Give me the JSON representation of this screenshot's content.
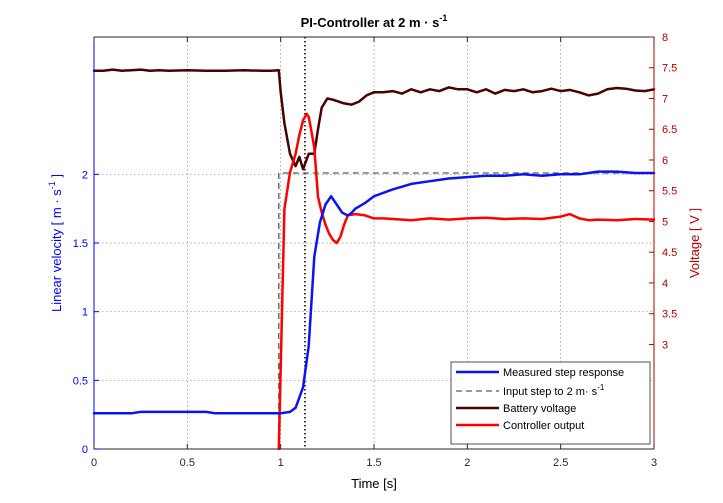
{
  "chart_data": {
    "type": "line",
    "title": "PI-Controller at 2 m · s",
    "title_sup": "-1",
    "xlabel": "Time [s]",
    "ylabel_left": "Linear velocity [ m · s",
    "ylabel_left_sup": "-1",
    "ylabel_left_end": " ]",
    "ylabel_right": "Voltage [ V ]",
    "xlim": [
      0,
      3
    ],
    "ylim_left": [
      0,
      3
    ],
    "ylim_right": [
      1.3,
      8
    ],
    "x_ticks": [
      "0",
      "0.5",
      "1",
      "1.5",
      "2",
      "2.5",
      "3"
    ],
    "y_left_ticks": [
      "0",
      "0.5",
      "1",
      "1.5",
      "2"
    ],
    "y_right_ticks": [
      "3",
      "3.5",
      "4",
      "4.5",
      "5",
      "5.5",
      "6",
      "6.5",
      "7",
      "7.5",
      "8"
    ],
    "grid": true,
    "legend_position": "bottom-right",
    "marker_line_x": 1.13,
    "colors": {
      "left_axis": "#0000ff",
      "right_axis": "#b00000",
      "grid": "#000000"
    },
    "series": [
      {
        "name": "Measured step response",
        "axis": "left",
        "color": "#0a14ee",
        "x": [
          0,
          0.1,
          0.2,
          0.25,
          0.3,
          0.4,
          0.5,
          0.6,
          0.65,
          0.7,
          0.8,
          0.9,
          1.0,
          1.05,
          1.08,
          1.12,
          1.15,
          1.18,
          1.21,
          1.24,
          1.27,
          1.3,
          1.33,
          1.36,
          1.38,
          1.4,
          1.45,
          1.5,
          1.6,
          1.7,
          1.8,
          1.9,
          2.0,
          2.1,
          2.2,
          2.3,
          2.4,
          2.5,
          2.6,
          2.7,
          2.8,
          2.9,
          3.0
        ],
        "y": [
          0.26,
          0.26,
          0.26,
          0.27,
          0.27,
          0.27,
          0.27,
          0.27,
          0.26,
          0.26,
          0.26,
          0.26,
          0.26,
          0.27,
          0.3,
          0.45,
          0.75,
          1.4,
          1.65,
          1.78,
          1.84,
          1.78,
          1.72,
          1.7,
          1.72,
          1.75,
          1.79,
          1.84,
          1.89,
          1.93,
          1.95,
          1.97,
          1.98,
          1.99,
          1.99,
          2.0,
          1.99,
          2.0,
          2.0,
          2.02,
          2.02,
          2.01,
          2.01
        ]
      },
      {
        "name": "Input step to 2 m· s",
        "name_sup": "-1",
        "axis": "left",
        "color": "#5a5a5a",
        "dashed": true,
        "x": [
          0.99,
          0.99,
          3.0
        ],
        "y": [
          0,
          2.01,
          2.01
        ]
      },
      {
        "name": "Battery voltage",
        "axis": "right",
        "color": "#4a0000",
        "x": [
          0,
          0.05,
          0.1,
          0.15,
          0.2,
          0.25,
          0.3,
          0.35,
          0.4,
          0.5,
          0.6,
          0.7,
          0.8,
          0.9,
          0.95,
          0.99,
          1.0,
          1.02,
          1.05,
          1.08,
          1.1,
          1.12,
          1.15,
          1.18,
          1.2,
          1.22,
          1.25,
          1.28,
          1.31,
          1.34,
          1.38,
          1.42,
          1.46,
          1.5,
          1.55,
          1.6,
          1.65,
          1.7,
          1.75,
          1.8,
          1.85,
          1.9,
          1.95,
          2.0,
          2.05,
          2.1,
          2.15,
          2.2,
          2.25,
          2.3,
          2.35,
          2.4,
          2.45,
          2.5,
          2.55,
          2.6,
          2.65,
          2.7,
          2.75,
          2.8,
          2.85,
          2.9,
          2.95,
          3.0
        ],
        "y": [
          7.45,
          7.45,
          7.47,
          7.45,
          7.46,
          7.47,
          7.45,
          7.46,
          7.45,
          7.46,
          7.45,
          7.45,
          7.46,
          7.45,
          7.45,
          7.46,
          7.1,
          6.6,
          6.1,
          5.9,
          6.05,
          5.85,
          6.1,
          6.1,
          6.5,
          6.85,
          7.0,
          6.98,
          6.95,
          6.92,
          6.9,
          6.95,
          7.05,
          7.1,
          7.1,
          7.12,
          7.08,
          7.15,
          7.1,
          7.15,
          7.12,
          7.18,
          7.15,
          7.15,
          7.1,
          7.15,
          7.08,
          7.14,
          7.12,
          7.15,
          7.1,
          7.12,
          7.16,
          7.12,
          7.14,
          7.1,
          7.05,
          7.08,
          7.15,
          7.17,
          7.16,
          7.13,
          7.12,
          7.15
        ]
      },
      {
        "name": "Controller output",
        "axis": "right",
        "color": "#ff0000",
        "x": [
          0.99,
          1.02,
          1.05,
          1.08,
          1.1,
          1.12,
          1.14,
          1.15,
          1.16,
          1.18,
          1.2,
          1.22,
          1.24,
          1.26,
          1.28,
          1.3,
          1.32,
          1.34,
          1.36,
          1.4,
          1.45,
          1.5,
          1.55,
          1.6,
          1.7,
          1.8,
          1.9,
          2.0,
          2.1,
          2.2,
          2.3,
          2.4,
          2.5,
          2.55,
          2.6,
          2.65,
          2.7,
          2.8,
          2.9,
          3.0
        ],
        "y": [
          1.3,
          5.2,
          5.8,
          6.1,
          6.4,
          6.65,
          6.75,
          6.7,
          6.55,
          6.2,
          5.4,
          5.15,
          4.95,
          4.8,
          4.7,
          4.65,
          4.75,
          4.95,
          5.1,
          5.12,
          5.1,
          5.05,
          5.05,
          5.04,
          5.02,
          5.05,
          5.03,
          5.05,
          5.06,
          5.04,
          5.05,
          5.04,
          5.08,
          5.12,
          5.05,
          5.02,
          5.03,
          5.02,
          5.04,
          5.03
        ]
      }
    ]
  }
}
